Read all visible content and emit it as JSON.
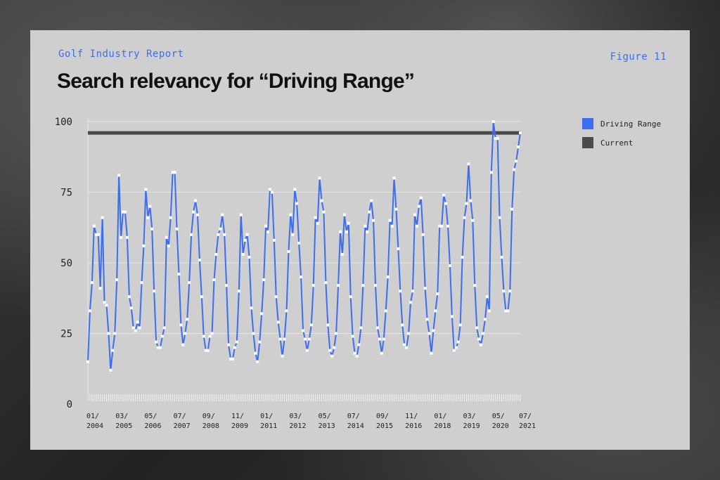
{
  "header": {
    "eyebrow": "Golf Industry Report",
    "figure_label": "Figure 11",
    "title": "Search relevancy for “Driving Range”"
  },
  "legend": [
    {
      "label": "Driving Range",
      "color": "#3d6ef0"
    },
    {
      "label": "Current",
      "color": "#4a4a4a"
    }
  ],
  "chart_data": {
    "type": "line",
    "title": "Search relevancy for “Driving Range”",
    "xlabel": "",
    "ylabel": "",
    "ylim": [
      0,
      100
    ],
    "yticks": [
      0,
      25,
      50,
      75,
      100
    ],
    "x_start": "01/2004",
    "x_end": "07/2021",
    "xtick_labels": [
      [
        "01/",
        "2004"
      ],
      [
        "03/",
        "2005"
      ],
      [
        "05/",
        "2006"
      ],
      [
        "07/",
        "2007"
      ],
      [
        "09/",
        "2008"
      ],
      [
        "11/",
        "2009"
      ],
      [
        "01/",
        "2011"
      ],
      [
        "03/",
        "2012"
      ],
      [
        "05/",
        "2013"
      ],
      [
        "07/",
        "2014"
      ],
      [
        "09/",
        "2015"
      ],
      [
        "11/",
        "2016"
      ],
      [
        "01/",
        "2018"
      ],
      [
        "03/",
        "2019"
      ],
      [
        "05/",
        "2020"
      ],
      [
        "07/",
        "2021"
      ]
    ],
    "grid": true,
    "legend_position": "right",
    "series": [
      {
        "name": "Driving Range",
        "color": "#3d6ef0",
        "values": [
          15,
          33,
          43,
          63,
          60,
          60,
          41,
          66,
          36,
          35,
          25,
          12,
          19,
          25,
          44,
          81,
          59,
          68,
          68,
          59,
          38,
          34,
          27,
          26,
          29,
          27,
          43,
          56,
          76,
          66,
          70,
          62,
          40,
          22,
          20,
          20,
          24,
          27,
          59,
          56,
          66,
          82,
          82,
          62,
          46,
          28,
          21,
          25,
          30,
          43,
          60,
          68,
          72,
          67,
          51,
          38,
          24,
          19,
          19,
          24,
          25,
          44,
          53,
          60,
          62,
          67,
          60,
          42,
          21,
          16,
          16,
          20,
          22,
          40,
          67,
          53,
          58,
          60,
          52,
          34,
          25,
          18,
          15,
          22,
          32,
          44,
          63,
          61,
          76,
          75,
          58,
          38,
          29,
          23,
          17,
          23,
          33,
          54,
          67,
          60,
          76,
          71,
          57,
          45,
          26,
          23,
          19,
          23,
          28,
          42,
          66,
          64,
          80,
          72,
          68,
          43,
          28,
          19,
          17,
          20,
          25,
          42,
          61,
          53,
          67,
          61,
          64,
          38,
          24,
          18,
          17,
          21,
          27,
          42,
          63,
          61,
          68,
          72,
          65,
          42,
          27,
          23,
          18,
          23,
          33,
          45,
          65,
          63,
          80,
          69,
          55,
          40,
          28,
          21,
          20,
          25,
          36,
          40,
          67,
          63,
          70,
          73,
          60,
          41,
          30,
          25,
          18,
          26,
          33,
          39,
          63,
          63,
          74,
          71,
          63,
          49,
          31,
          19,
          20,
          22,
          28,
          52,
          66,
          71,
          85,
          72,
          65,
          42,
          27,
          23,
          21,
          25,
          30,
          38,
          33,
          82,
          100,
          94,
          94,
          66,
          52,
          40,
          33,
          33,
          40,
          69,
          83,
          86,
          91,
          96
        ]
      },
      {
        "name": "Current",
        "color": "#4a4a4a",
        "values": [
          96
        ]
      }
    ]
  }
}
